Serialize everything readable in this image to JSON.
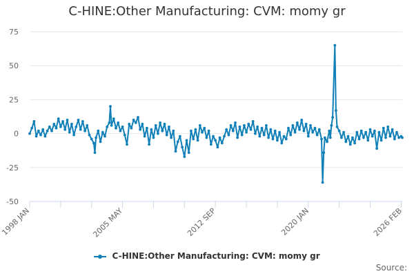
{
  "chart_data": {
    "type": "line",
    "title": "C-HINE:Other Manufacturing: CVM: momy gr",
    "xlabel": "",
    "ylabel": "",
    "ylim": [
      -50,
      75
    ],
    "y_ticks": [
      75,
      50,
      25,
      0,
      -25,
      -50
    ],
    "x_range": [
      "1998-01",
      "2026-02"
    ],
    "x_tick_labels": [
      "1998 JAN",
      "2005 MAY",
      "2012 SEP",
      "2020 JAN",
      "2026 FEB"
    ],
    "grid": true,
    "legend_position": "bottom",
    "series": [
      {
        "name": "C-HINE:Other Manufacturing: CVM: momy gr",
        "color": "#0f7fb8",
        "points": [
          [
            "1998-01",
            0
          ],
          [
            "1998-03",
            4
          ],
          [
            "1998-05",
            9
          ],
          [
            "1998-07",
            -2
          ],
          [
            "1998-09",
            2
          ],
          [
            "1998-11",
            -1
          ],
          [
            "1999-01",
            3
          ],
          [
            "1999-03",
            -2
          ],
          [
            "1999-05",
            2
          ],
          [
            "1999-07",
            5
          ],
          [
            "1999-09",
            2
          ],
          [
            "1999-11",
            7
          ],
          [
            "2000-01",
            4
          ],
          [
            "2000-03",
            11
          ],
          [
            "2000-05",
            5
          ],
          [
            "2000-07",
            9
          ],
          [
            "2000-09",
            3
          ],
          [
            "2000-11",
            10
          ],
          [
            "2001-01",
            1
          ],
          [
            "2001-03",
            7
          ],
          [
            "2001-05",
            -1
          ],
          [
            "2001-07",
            5
          ],
          [
            "2001-09",
            10
          ],
          [
            "2001-11",
            3
          ],
          [
            "2002-01",
            9
          ],
          [
            "2002-03",
            2
          ],
          [
            "2002-05",
            6
          ],
          [
            "2002-07",
            -1
          ],
          [
            "2002-09",
            -4
          ],
          [
            "2002-11",
            -7
          ],
          [
            "2002-12",
            -14
          ],
          [
            "2003-01",
            -3
          ],
          [
            "2003-03",
            2
          ],
          [
            "2003-05",
            -6
          ],
          [
            "2003-07",
            1
          ],
          [
            "2003-09",
            -2
          ],
          [
            "2003-11",
            5
          ],
          [
            "2004-01",
            8
          ],
          [
            "2004-02",
            20
          ],
          [
            "2004-03",
            6
          ],
          [
            "2004-05",
            11
          ],
          [
            "2004-07",
            4
          ],
          [
            "2004-09",
            8
          ],
          [
            "2004-11",
            2
          ],
          [
            "2005-01",
            5
          ],
          [
            "2005-03",
            -1
          ],
          [
            "2005-05",
            -8
          ],
          [
            "2005-07",
            7
          ],
          [
            "2005-09",
            4
          ],
          [
            "2005-11",
            10
          ],
          [
            "2006-01",
            8
          ],
          [
            "2006-03",
            12
          ],
          [
            "2006-05",
            3
          ],
          [
            "2006-07",
            7
          ],
          [
            "2006-09",
            -2
          ],
          [
            "2006-11",
            4
          ],
          [
            "2007-01",
            -8
          ],
          [
            "2007-03",
            3
          ],
          [
            "2007-05",
            -3
          ],
          [
            "2007-07",
            6
          ],
          [
            "2007-09",
            0
          ],
          [
            "2007-11",
            8
          ],
          [
            "2008-01",
            2
          ],
          [
            "2008-03",
            7
          ],
          [
            "2008-05",
            -1
          ],
          [
            "2008-07",
            5
          ],
          [
            "2008-09",
            -3
          ],
          [
            "2008-11",
            2
          ],
          [
            "2009-01",
            -13
          ],
          [
            "2009-03",
            -6
          ],
          [
            "2009-05",
            -2
          ],
          [
            "2009-07",
            -10
          ],
          [
            "2009-09",
            -17
          ],
          [
            "2009-11",
            -5
          ],
          [
            "2010-01",
            -14
          ],
          [
            "2010-03",
            2
          ],
          [
            "2010-05",
            -4
          ],
          [
            "2010-07",
            3
          ],
          [
            "2010-09",
            -5
          ],
          [
            "2010-11",
            6
          ],
          [
            "2011-01",
            1
          ],
          [
            "2011-03",
            4
          ],
          [
            "2011-05",
            -3
          ],
          [
            "2011-07",
            2
          ],
          [
            "2011-09",
            -8
          ],
          [
            "2011-11",
            -2
          ],
          [
            "2012-01",
            -5
          ],
          [
            "2012-03",
            -10
          ],
          [
            "2012-05",
            -3
          ],
          [
            "2012-07",
            -7
          ],
          [
            "2012-09",
            -2
          ],
          [
            "2012-11",
            3
          ],
          [
            "2013-01",
            -1
          ],
          [
            "2013-03",
            6
          ],
          [
            "2013-05",
            2
          ],
          [
            "2013-07",
            8
          ],
          [
            "2013-09",
            -3
          ],
          [
            "2013-11",
            5
          ],
          [
            "2014-01",
            -1
          ],
          [
            "2014-03",
            6
          ],
          [
            "2014-05",
            1
          ],
          [
            "2014-07",
            7
          ],
          [
            "2014-09",
            3
          ],
          [
            "2014-11",
            9
          ],
          [
            "2015-01",
            0
          ],
          [
            "2015-03",
            5
          ],
          [
            "2015-05",
            -2
          ],
          [
            "2015-07",
            4
          ],
          [
            "2015-09",
            -1
          ],
          [
            "2015-11",
            6
          ],
          [
            "2016-01",
            -3
          ],
          [
            "2016-03",
            3
          ],
          [
            "2016-05",
            -4
          ],
          [
            "2016-07",
            2
          ],
          [
            "2016-09",
            -5
          ],
          [
            "2016-11",
            1
          ],
          [
            "2017-01",
            -7
          ],
          [
            "2017-03",
            -2
          ],
          [
            "2017-05",
            -4
          ],
          [
            "2017-07",
            4
          ],
          [
            "2017-09",
            -1
          ],
          [
            "2017-11",
            6
          ],
          [
            "2018-01",
            1
          ],
          [
            "2018-03",
            8
          ],
          [
            "2018-05",
            3
          ],
          [
            "2018-07",
            10
          ],
          [
            "2018-09",
            2
          ],
          [
            "2018-11",
            7
          ],
          [
            "2019-01",
            -2
          ],
          [
            "2019-03",
            6
          ],
          [
            "2019-05",
            1
          ],
          [
            "2019-07",
            4
          ],
          [
            "2019-09",
            -1
          ],
          [
            "2019-11",
            3
          ],
          [
            "2020-01",
            -4
          ],
          [
            "2020-02",
            -36
          ],
          [
            "2020-03",
            -14
          ],
          [
            "2020-04",
            -3
          ],
          [
            "2020-06",
            -6
          ],
          [
            "2020-08",
            2
          ],
          [
            "2020-09",
            -3
          ],
          [
            "2020-10",
            6
          ],
          [
            "2020-11",
            12
          ],
          [
            "2021-01",
            65
          ],
          [
            "2021-02",
            17
          ],
          [
            "2021-03",
            5
          ],
          [
            "2021-05",
            2
          ],
          [
            "2021-07",
            -3
          ],
          [
            "2021-09",
            1
          ],
          [
            "2021-11",
            -6
          ],
          [
            "2022-01",
            -2
          ],
          [
            "2022-03",
            -8
          ],
          [
            "2022-05",
            -3
          ],
          [
            "2022-07",
            -7
          ],
          [
            "2022-09",
            1
          ],
          [
            "2022-11",
            -4
          ],
          [
            "2023-01",
            2
          ],
          [
            "2023-03",
            -3
          ],
          [
            "2023-05",
            1
          ],
          [
            "2023-07",
            -5
          ],
          [
            "2023-09",
            3
          ],
          [
            "2023-11",
            -2
          ],
          [
            "2024-01",
            2
          ],
          [
            "2024-03",
            -11
          ],
          [
            "2024-05",
            1
          ],
          [
            "2024-07",
            -5
          ],
          [
            "2024-09",
            4
          ],
          [
            "2024-11",
            -3
          ],
          [
            "2025-01",
            5
          ],
          [
            "2025-03",
            -2
          ],
          [
            "2025-05",
            3
          ],
          [
            "2025-07",
            -4
          ],
          [
            "2025-09",
            1
          ],
          [
            "2025-11",
            -3
          ],
          [
            "2026-01",
            -2
          ],
          [
            "2026-02",
            -3
          ]
        ]
      }
    ]
  },
  "source_label": "Source:"
}
